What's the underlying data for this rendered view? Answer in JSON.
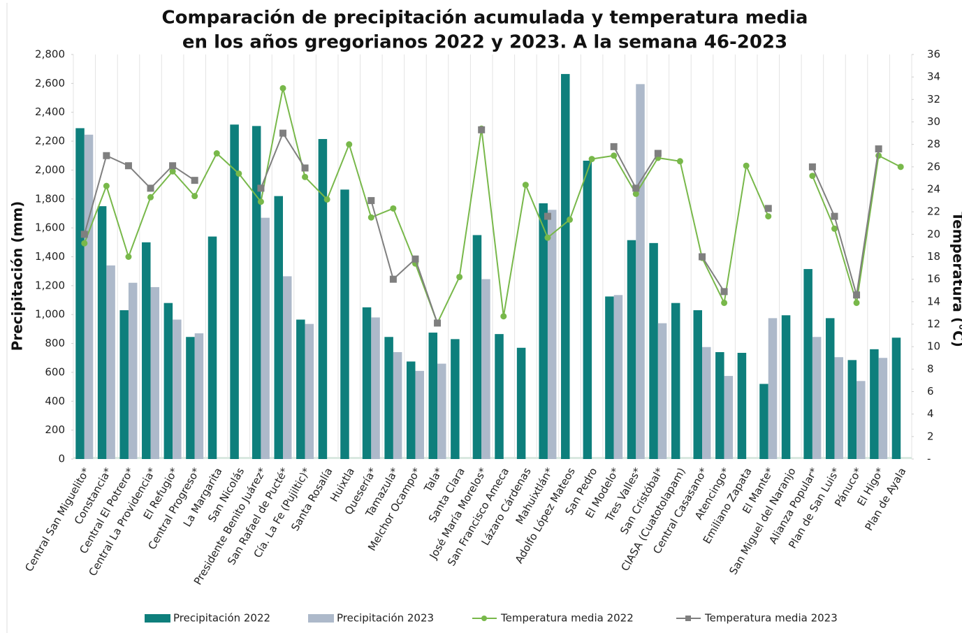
{
  "chart_data": {
    "type": "bar-line",
    "title": [
      "Comparación de precipitación acumulada y temperatura media",
      "en los años gregorianos 2022 y 2023. A la semana 46-2023"
    ],
    "y_label": "Precipitación (mm)",
    "y2_label": "Temperatura (°C)",
    "categories": [
      "Central San Miguelito*",
      "Constancia*",
      "Central El Potrero*",
      "Central La Providencia*",
      "El Refugio*",
      "Central Progreso*",
      "La Margarita",
      "San Nicolás",
      "Presidente Benito Juárez*",
      "San Rafael de Pucté*",
      "Cía. La Fe (Pujiltic)*",
      "Santa Rosalía",
      "Huixtla",
      "Quesería*",
      "Tamazula*",
      "Melchor Ocampo*",
      "Tala*",
      "Santa Clara",
      "José María Morelos*",
      "San Francisco Ameca",
      "Lázaro Cárdenas",
      "Mahuixtlán*",
      "Adolfo López Mateos",
      "San Pedro",
      "El Modelo*",
      "Tres Valles*",
      "San Cristóbal*",
      "CIASA (Cuatotolapam)",
      "Central Casasano*",
      "Atencingo*",
      "Emiliano Zapata",
      "El Mante*",
      "San Miguel del Naranjo",
      "Alianza Popular*",
      "Plan de San Luis*",
      "Pánuco*",
      "El Higo*",
      "Plan de Ayala"
    ],
    "series": [
      {
        "name": "Precipitación 2022",
        "kind": "bar",
        "color": "#0e7f7c",
        "values": [
          2290,
          1750,
          1030,
          1500,
          1080,
          845,
          1540,
          2315,
          2305,
          1820,
          965,
          2215,
          1865,
          1050,
          845,
          675,
          875,
          830,
          1550,
          865,
          770,
          1770,
          2665,
          2065,
          1125,
          1515,
          1495,
          1080,
          1030,
          740,
          735,
          520,
          995,
          1315,
          975,
          685,
          760,
          840
        ]
      },
      {
        "name": "Precipitación 2023",
        "kind": "bar",
        "color": "#adb9ca",
        "values": [
          2245,
          1340,
          1220,
          1190,
          965,
          870,
          null,
          null,
          1670,
          1265,
          935,
          null,
          null,
          980,
          740,
          610,
          660,
          null,
          1245,
          null,
          null,
          1725,
          null,
          null,
          1135,
          2595,
          940,
          null,
          775,
          575,
          null,
          975,
          null,
          845,
          705,
          540,
          700,
          null
        ]
      },
      {
        "name": "Temperatura media 2022",
        "kind": "line",
        "marker": "circle",
        "axis": "y2",
        "color": "#78b84a",
        "values": [
          19.2,
          24.3,
          18.0,
          23.3,
          25.6,
          23.4,
          27.2,
          25.4,
          22.9,
          33.0,
          25.1,
          23.1,
          28.0,
          21.5,
          22.3,
          17.4,
          12.1,
          16.2,
          29.4,
          12.7,
          24.4,
          19.7,
          21.3,
          26.7,
          27.0,
          23.6,
          26.8,
          26.5,
          17.9,
          13.9,
          26.1,
          21.6,
          null,
          25.2,
          20.5,
          13.9,
          27.0,
          26.0
        ]
      },
      {
        "name": "Temperatura media 2023",
        "kind": "line",
        "marker": "square",
        "axis": "y2",
        "color": "#7f7f7f",
        "values": [
          20.0,
          27.0,
          26.1,
          24.1,
          26.1,
          24.8,
          null,
          null,
          24.1,
          29.0,
          25.9,
          null,
          null,
          23.0,
          16.0,
          17.8,
          12.1,
          null,
          29.3,
          null,
          null,
          21.6,
          null,
          null,
          27.8,
          24.1,
          27.2,
          null,
          18.0,
          14.9,
          null,
          22.3,
          null,
          26.0,
          21.6,
          14.6,
          27.6,
          null
        ]
      }
    ],
    "ylim": [
      0,
      2800
    ],
    "yticks": [
      0,
      200,
      400,
      600,
      800,
      {
        "value": 1000,
        "label": "1,000"
      },
      {
        "value": 1200,
        "label": "1,200"
      },
      {
        "value": 1400,
        "label": "1,400"
      },
      {
        "value": 1600,
        "label": "1,600"
      },
      {
        "value": 1800,
        "label": "1,800"
      },
      {
        "value": 2000,
        "label": "2,000"
      },
      {
        "value": 2200,
        "label": "2,200"
      },
      {
        "value": 2400,
        "label": "2,400"
      },
      {
        "value": 2600,
        "label": "2,600"
      },
      {
        "value": 2800,
        "label": "2,800"
      }
    ],
    "y2lim": [
      0,
      36
    ],
    "y2ticks": [
      {
        "value": 0,
        "label": "-"
      },
      2,
      4,
      6,
      8,
      10,
      12,
      14,
      16,
      18,
      20,
      22,
      24,
      26,
      28,
      30,
      32,
      34,
      36
    ],
    "legend": "bottom"
  }
}
